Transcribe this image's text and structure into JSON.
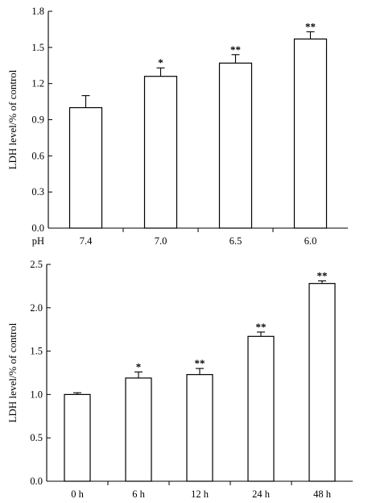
{
  "chart_data": [
    {
      "type": "bar",
      "x_prefix": "pH",
      "categories": [
        "7.4",
        "7.0",
        "6.5",
        "6.0"
      ],
      "values": [
        1.0,
        1.26,
        1.37,
        1.57
      ],
      "errors": [
        0.1,
        0.07,
        0.07,
        0.06
      ],
      "significance": [
        "",
        "*",
        "**",
        "**"
      ],
      "ylabel": "LDH level/% of control",
      "ylim": [
        0.0,
        1.8
      ],
      "yticks": [
        "0.0",
        "0.3",
        "0.6",
        "0.9",
        "1.2",
        "1.5",
        "1.8"
      ]
    },
    {
      "type": "bar",
      "categories": [
        "0 h",
        "6 h",
        "12 h",
        "24 h",
        "48 h"
      ],
      "values": [
        1.0,
        1.19,
        1.23,
        1.67,
        2.28
      ],
      "errors": [
        0.02,
        0.07,
        0.07,
        0.05,
        0.03
      ],
      "significance": [
        "",
        "*",
        "**",
        "**",
        "**"
      ],
      "ylabel": "LDH level/% of control",
      "ylim": [
        0.0,
        2.5
      ],
      "yticks": [
        "0.0",
        "0.5",
        "1.0",
        "1.5",
        "2.0",
        "2.5"
      ]
    }
  ]
}
